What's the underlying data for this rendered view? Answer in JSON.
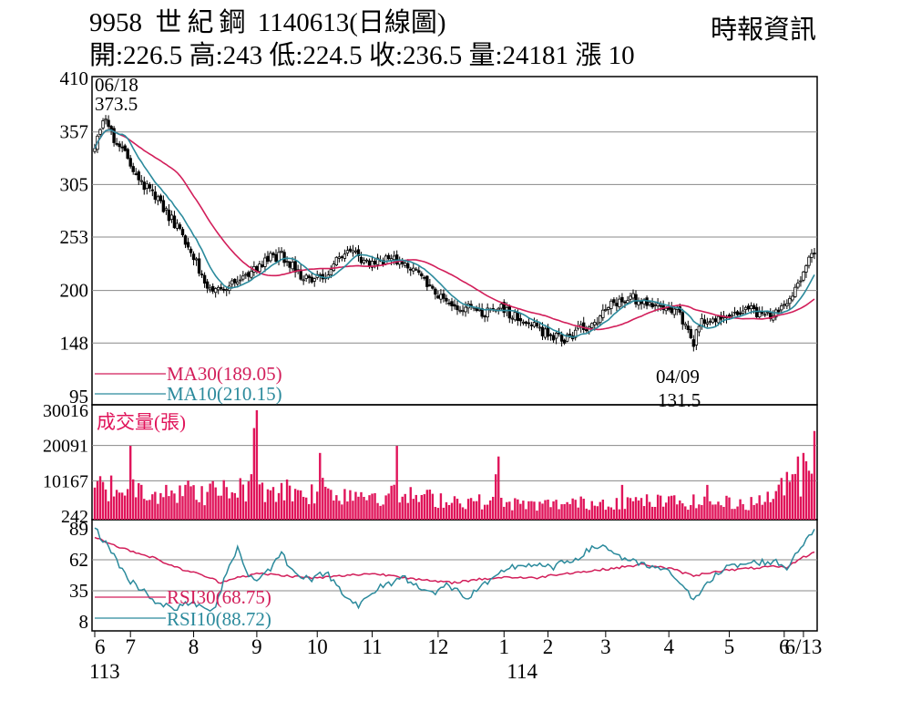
{
  "header": {
    "code": "9958",
    "name": "世紀鋼",
    "date": "1140613",
    "chart_kind": "(日線圖)",
    "source": "時報資訊",
    "open_label": "開:226.5",
    "high_label": "高:243",
    "low_label": "低:224.5",
    "close_label": "收:236.5",
    "volume_label": "量:24181",
    "change_label": "漲 10"
  },
  "colors": {
    "ma30": "#d21e5a",
    "ma10": "#2b8a9c",
    "volume_bar": "#e0145a",
    "candle": "#000000",
    "grid": "#888888"
  },
  "chart_data": [
    {
      "type": "candlestick",
      "y_ticks": [
        "410",
        "357",
        "305",
        "253",
        "200",
        "148",
        "95"
      ],
      "ylim": [
        95,
        410
      ],
      "annotations": {
        "high": {
          "date": "06/18",
          "value": "373.5"
        },
        "low": {
          "date": "04/09",
          "value": "131.5"
        }
      },
      "ma30_label": "MA30(189.05)",
      "ma10_label": "MA10(210.15)",
      "close_anchors": [
        [
          0,
          345
        ],
        [
          4,
          370
        ],
        [
          8,
          345
        ],
        [
          12,
          330
        ],
        [
          16,
          310
        ],
        [
          20,
          300
        ],
        [
          24,
          285
        ],
        [
          28,
          270
        ],
        [
          32,
          255
        ],
        [
          36,
          235
        ],
        [
          40,
          205
        ],
        [
          44,
          198
        ],
        [
          48,
          205
        ],
        [
          52,
          210
        ],
        [
          56,
          215
        ],
        [
          60,
          225
        ],
        [
          64,
          232
        ],
        [
          68,
          235
        ],
        [
          72,
          225
        ],
        [
          76,
          212
        ],
        [
          80,
          210
        ],
        [
          84,
          215
        ],
        [
          88,
          235
        ],
        [
          92,
          240
        ],
        [
          96,
          235
        ],
        [
          100,
          225
        ],
        [
          104,
          228
        ],
        [
          108,
          232
        ],
        [
          112,
          225
        ],
        [
          116,
          220
        ],
        [
          120,
          210
        ],
        [
          124,
          198
        ],
        [
          128,
          185
        ],
        [
          132,
          180
        ],
        [
          136,
          182
        ],
        [
          140,
          178
        ],
        [
          144,
          180
        ],
        [
          148,
          182
        ],
        [
          152,
          175
        ],
        [
          156,
          170
        ],
        [
          160,
          165
        ],
        [
          164,
          158
        ],
        [
          168,
          155
        ],
        [
          172,
          152
        ],
        [
          176,
          160
        ],
        [
          180,
          165
        ],
        [
          184,
          175
        ],
        [
          188,
          185
        ],
        [
          192,
          190
        ],
        [
          196,
          192
        ],
        [
          200,
          190
        ],
        [
          204,
          188
        ],
        [
          208,
          185
        ],
        [
          212,
          180
        ],
        [
          214,
          168
        ],
        [
          216,
          160
        ],
        [
          218,
          145
        ],
        [
          220,
          168
        ],
        [
          224,
          172
        ],
        [
          228,
          175
        ],
        [
          232,
          178
        ],
        [
          236,
          180
        ],
        [
          240,
          180
        ],
        [
          244,
          175
        ],
        [
          248,
          178
        ],
        [
          252,
          188
        ],
        [
          256,
          210
        ],
        [
          260,
          228
        ],
        [
          262,
          236.5
        ]
      ]
    },
    {
      "type": "bar",
      "title": "成交量(張)",
      "y_ticks": [
        "30016",
        "20091",
        "10167",
        "242"
      ],
      "ylim": [
        242,
        30016
      ]
    },
    {
      "type": "line",
      "y_ticks": [
        "89",
        "62",
        "35",
        "8"
      ],
      "ylim": [
        8,
        89
      ],
      "series": [
        {
          "name": "RSI30(68.75)",
          "anchors": [
            [
              0,
              82
            ],
            [
              10,
              72
            ],
            [
              20,
              65
            ],
            [
              30,
              55
            ],
            [
              40,
              48
            ],
            [
              46,
              42
            ],
            [
              50,
              46
            ],
            [
              60,
              50
            ],
            [
              70,
              48
            ],
            [
              80,
              46
            ],
            [
              90,
              48
            ],
            [
              100,
              50
            ],
            [
              110,
              48
            ],
            [
              120,
              44
            ],
            [
              130,
              42
            ],
            [
              140,
              45
            ],
            [
              150,
              47
            ],
            [
              160,
              46
            ],
            [
              170,
              50
            ],
            [
              180,
              52
            ],
            [
              190,
              55
            ],
            [
              200,
              58
            ],
            [
              210,
              54
            ],
            [
              218,
              48
            ],
            [
              226,
              52
            ],
            [
              236,
              54
            ],
            [
              246,
              56
            ],
            [
              252,
              55
            ],
            [
              256,
              62
            ],
            [
              262,
              68.75
            ]
          ]
        },
        {
          "name": "RSI10(88.72)",
          "anchors": [
            [
              0,
              89
            ],
            [
              6,
              70
            ],
            [
              12,
              45
            ],
            [
              18,
              35
            ],
            [
              24,
              22
            ],
            [
              30,
              20
            ],
            [
              36,
              25
            ],
            [
              40,
              18
            ],
            [
              44,
              22
            ],
            [
              48,
              52
            ],
            [
              52,
              72
            ],
            [
              56,
              48
            ],
            [
              60,
              45
            ],
            [
              64,
              55
            ],
            [
              68,
              68
            ],
            [
              72,
              52
            ],
            [
              76,
              48
            ],
            [
              80,
              45
            ],
            [
              84,
              52
            ],
            [
              88,
              40
            ],
            [
              92,
              30
            ],
            [
              96,
              22
            ],
            [
              100,
              30
            ],
            [
              104,
              38
            ],
            [
              108,
              42
            ],
            [
              112,
              48
            ],
            [
              116,
              40
            ],
            [
              120,
              38
            ],
            [
              124,
              32
            ],
            [
              128,
              40
            ],
            [
              132,
              35
            ],
            [
              136,
              28
            ],
            [
              140,
              38
            ],
            [
              144,
              42
            ],
            [
              150,
              55
            ],
            [
              158,
              58
            ],
            [
              166,
              55
            ],
            [
              174,
              62
            ],
            [
              180,
              70
            ],
            [
              184,
              75
            ],
            [
              188,
              70
            ],
            [
              192,
              64
            ],
            [
              198,
              58
            ],
            [
              204,
              55
            ],
            [
              210,
              50
            ],
            [
              214,
              40
            ],
            [
              218,
              25
            ],
            [
              222,
              42
            ],
            [
              226,
              48
            ],
            [
              230,
              55
            ],
            [
              236,
              58
            ],
            [
              242,
              60
            ],
            [
              248,
              60
            ],
            [
              252,
              55
            ],
            [
              256,
              70
            ],
            [
              260,
              84
            ],
            [
              262,
              88.72
            ]
          ]
        }
      ]
    }
  ],
  "x_axis": {
    "labels": [
      {
        "text": "6",
        "i": 0
      },
      {
        "text": "7",
        "i": 13
      },
      {
        "text": "8",
        "i": 36
      },
      {
        "text": "9",
        "i": 59
      },
      {
        "text": "10",
        "i": 81
      },
      {
        "text": "11",
        "i": 101
      },
      {
        "text": "12",
        "i": 125
      },
      {
        "text": "1",
        "i": 149
      },
      {
        "text": "2",
        "i": 165
      },
      {
        "text": "3",
        "i": 186
      },
      {
        "text": "4",
        "i": 209
      },
      {
        "text": "5",
        "i": 231
      },
      {
        "text": "6",
        "i": 251
      },
      {
        "text": "6/13",
        "i": 258
      }
    ],
    "year_labels": [
      {
        "text": "113",
        "i": 3
      },
      {
        "text": "114",
        "i": 154
      }
    ]
  }
}
